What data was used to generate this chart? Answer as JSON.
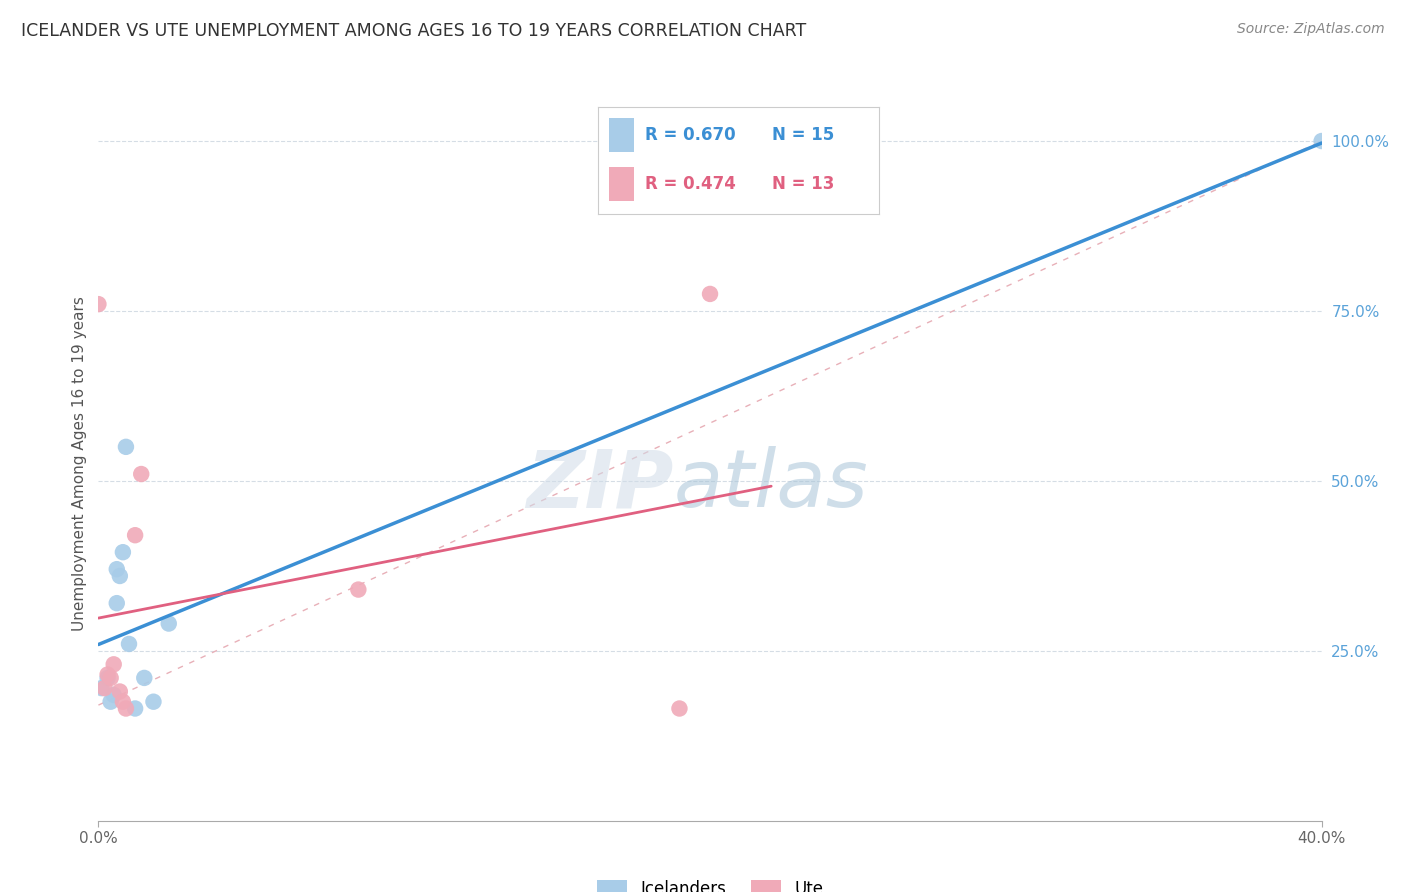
{
  "title": "ICELANDER VS UTE UNEMPLOYMENT AMONG AGES 16 TO 19 YEARS CORRELATION CHART",
  "source": "Source: ZipAtlas.com",
  "ylabel": "Unemployment Among Ages 16 to 19 years",
  "xlim": [
    0.0,
    0.4
  ],
  "ylim": [
    0.0,
    1.05
  ],
  "icelander_color": "#a8cce8",
  "ute_color": "#f0aab8",
  "icelander_line_color": "#3b8fd4",
  "ute_line_color": "#e06080",
  "diagonal_color": "#e8b0b8",
  "R_icelander": 0.67,
  "N_icelander": 15,
  "R_ute": 0.474,
  "N_ute": 13,
  "icelander_x": [
    0.001,
    0.003,
    0.004,
    0.005,
    0.006,
    0.006,
    0.007,
    0.008,
    0.009,
    0.01,
    0.012,
    0.015,
    0.018,
    0.023,
    0.4
  ],
  "icelander_y": [
    0.195,
    0.21,
    0.175,
    0.185,
    0.32,
    0.37,
    0.36,
    0.395,
    0.55,
    0.26,
    0.165,
    0.21,
    0.175,
    0.29,
    1.0
  ],
  "ute_x": [
    0.0,
    0.002,
    0.003,
    0.004,
    0.005,
    0.007,
    0.008,
    0.009,
    0.012,
    0.014,
    0.085,
    0.19,
    0.2
  ],
  "ute_y": [
    0.76,
    0.195,
    0.215,
    0.21,
    0.23,
    0.19,
    0.175,
    0.165,
    0.42,
    0.51,
    0.34,
    0.165,
    0.775
  ],
  "watermark_zip": "ZIP",
  "watermark_atlas": "atlas",
  "background_color": "#ffffff",
  "grid_color": "#d5dde5",
  "right_tick_color": "#5ba3d9",
  "legend_border_color": "#cccccc"
}
